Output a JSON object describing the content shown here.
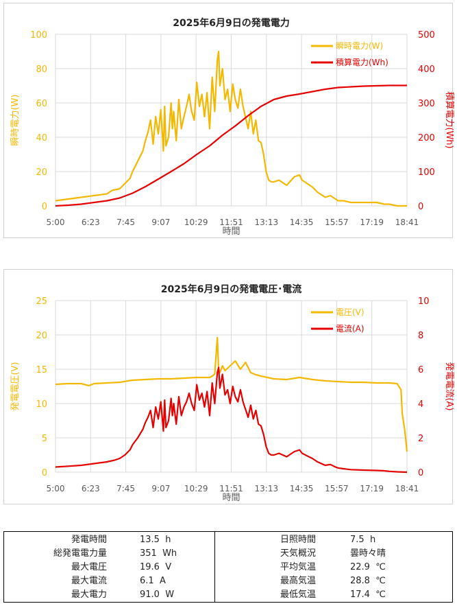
{
  "charts": [
    {
      "title": "2025年6月9日の発電電力",
      "xlabel": "時間",
      "ylabel_left": "瞬時電力(W)",
      "ylabel_right": "積算電力(Wh)",
      "xticks": [
        "5:00",
        "6:23",
        "7:45",
        "9:07",
        "10:29",
        "11:51",
        "13:13",
        "14:35",
        "15:57",
        "17:19",
        "18:41"
      ],
      "yticks_left": [
        "0",
        "20",
        "40",
        "60",
        "80",
        "100"
      ],
      "yticks_right": [
        "0",
        "100",
        "200",
        "300",
        "400",
        "500"
      ],
      "legend": [
        "瞬時電力(W)",
        "積算電力(Wh)"
      ]
    },
    {
      "title": "2025年6月9日の発電電圧･電流",
      "xlabel": "時間",
      "ylabel_left": "発電電圧(V)",
      "ylabel_right": "発電電流(A)",
      "xticks": [
        "5:00",
        "6:23",
        "7:45",
        "9:07",
        "10:29",
        "11:51",
        "13:13",
        "14:35",
        "15:57",
        "17:19",
        "18:41"
      ],
      "yticks_left": [
        "0",
        "5",
        "10",
        "15",
        "20",
        "25"
      ],
      "yticks_right": [
        "0",
        "2",
        "4",
        "6",
        "8",
        "10"
      ],
      "legend": [
        "電圧(V)",
        "電流(A)"
      ]
    }
  ],
  "chart_data": [
    {
      "type": "line",
      "title": "2025年6月9日の発電電力",
      "xlabel": "時間",
      "xlim": [
        5.0,
        18.683
      ],
      "ylim_left": [
        0,
        100
      ],
      "ylim_right": [
        0,
        500
      ],
      "grid": true,
      "legend_position": "top-right",
      "series": [
        {
          "name": "瞬時電力(W)",
          "axis": "left",
          "color": "#f5b800",
          "x": [
            5.0,
            5.5,
            6.0,
            6.5,
            7.0,
            7.2,
            7.5,
            7.7,
            7.9,
            8.0,
            8.2,
            8.4,
            8.5,
            8.6,
            8.7,
            8.8,
            8.9,
            9.0,
            9.1,
            9.2,
            9.25,
            9.3,
            9.4,
            9.5,
            9.55,
            9.6,
            9.7,
            9.8,
            9.9,
            10.0,
            10.1,
            10.2,
            10.3,
            10.4,
            10.5,
            10.6,
            10.7,
            10.8,
            10.9,
            11.0,
            11.1,
            11.2,
            11.3,
            11.35,
            11.4,
            11.5,
            11.6,
            11.7,
            11.8,
            11.9,
            12.0,
            12.1,
            12.2,
            12.3,
            12.5,
            12.6,
            12.7,
            12.8,
            12.9,
            13.0,
            13.1,
            13.2,
            13.3,
            13.4,
            13.5,
            13.7,
            14.0,
            14.3,
            14.5,
            14.6,
            14.8,
            15.0,
            15.2,
            15.5,
            15.7,
            15.9,
            16.0,
            16.2,
            16.5,
            17.0,
            17.5,
            17.8,
            18.0,
            18.3,
            18.683
          ],
          "y": [
            3,
            4,
            5,
            6,
            7,
            9,
            10,
            13,
            16,
            20,
            26,
            32,
            38,
            43,
            50,
            36,
            52,
            42,
            56,
            32,
            58,
            35,
            40,
            60,
            45,
            55,
            38,
            62,
            45,
            52,
            58,
            65,
            55,
            50,
            72,
            58,
            65,
            52,
            66,
            45,
            75,
            55,
            85,
            90,
            70,
            80,
            62,
            68,
            55,
            71,
            62,
            57,
            68,
            58,
            45,
            55,
            42,
            50,
            38,
            37,
            30,
            20,
            15,
            14,
            14,
            15,
            12,
            17,
            18,
            15,
            13,
            11,
            8,
            5,
            6,
            4,
            3,
            3,
            2,
            2,
            2,
            1,
            1,
            0,
            0
          ]
        },
        {
          "name": "積算電力(Wh)",
          "axis": "right",
          "color": "#e60000",
          "x": [
            5.0,
            5.5,
            6.0,
            6.5,
            7.0,
            7.5,
            8.0,
            8.5,
            9.0,
            9.5,
            10.0,
            10.5,
            11.0,
            11.5,
            12.0,
            12.5,
            13.0,
            13.5,
            14.0,
            14.5,
            15.0,
            15.5,
            16.0,
            16.5,
            17.0,
            17.5,
            18.0,
            18.683
          ],
          "y": [
            0,
            2,
            5,
            10,
            15,
            23,
            37,
            56,
            78,
            100,
            123,
            150,
            175,
            206,
            233,
            263,
            290,
            310,
            320,
            326,
            333,
            340,
            345,
            347,
            349,
            350,
            351,
            351
          ]
        }
      ]
    },
    {
      "type": "line",
      "title": "2025年6月9日の発電電圧･電流",
      "xlabel": "時間",
      "xlim": [
        5.0,
        18.683
      ],
      "ylim_left": [
        0,
        25
      ],
      "ylim_right": [
        0,
        10
      ],
      "grid": true,
      "legend_position": "top-right",
      "series": [
        {
          "name": "電圧(V)",
          "axis": "left",
          "color": "#f5b800",
          "x": [
            5.0,
            5.5,
            6.0,
            6.3,
            6.5,
            7.0,
            7.5,
            8.0,
            8.5,
            9.0,
            9.5,
            10.0,
            10.5,
            11.0,
            11.1,
            11.2,
            11.3,
            11.35,
            11.4,
            11.5,
            11.6,
            11.8,
            12.0,
            12.2,
            12.4,
            12.6,
            12.8,
            13.0,
            13.5,
            14.0,
            14.5,
            15.0,
            15.5,
            16.0,
            16.5,
            17.0,
            17.5,
            18.0,
            18.3,
            18.45,
            18.5,
            18.6,
            18.683
          ],
          "y": [
            12.8,
            12.9,
            12.9,
            12.6,
            12.9,
            13.0,
            13.1,
            13.4,
            13.5,
            13.6,
            13.6,
            13.7,
            13.8,
            13.8,
            14.0,
            14.3,
            19.6,
            15.0,
            14.5,
            15.5,
            14.8,
            15.5,
            16.2,
            15.0,
            16.0,
            14.5,
            14.2,
            14.0,
            13.6,
            13.5,
            13.8,
            13.5,
            13.3,
            13.2,
            13.1,
            13.1,
            13.0,
            13.0,
            12.9,
            12.0,
            8.5,
            6.0,
            3.0
          ]
        },
        {
          "name": "電流(A)",
          "axis": "right",
          "color": "#e60000",
          "x": [
            5.0,
            5.5,
            6.0,
            6.5,
            7.0,
            7.3,
            7.5,
            7.7,
            7.9,
            8.0,
            8.2,
            8.4,
            8.5,
            8.6,
            8.7,
            8.8,
            8.9,
            9.0,
            9.1,
            9.2,
            9.25,
            9.3,
            9.4,
            9.5,
            9.55,
            9.6,
            9.7,
            9.8,
            9.9,
            10.0,
            10.1,
            10.2,
            10.3,
            10.4,
            10.5,
            10.6,
            10.7,
            10.8,
            10.9,
            11.0,
            11.1,
            11.2,
            11.3,
            11.35,
            11.4,
            11.5,
            11.6,
            11.7,
            11.8,
            11.9,
            12.0,
            12.1,
            12.2,
            12.3,
            12.5,
            12.6,
            12.7,
            12.8,
            12.9,
            13.0,
            13.1,
            13.2,
            13.3,
            13.4,
            13.5,
            13.7,
            14.0,
            14.3,
            14.5,
            14.6,
            14.8,
            15.0,
            15.2,
            15.5,
            15.7,
            15.9,
            16.0,
            16.2,
            16.5,
            17.0,
            17.5,
            17.8,
            18.0,
            18.3,
            18.683
          ],
          "y": [
            0.3,
            0.35,
            0.4,
            0.5,
            0.6,
            0.7,
            0.8,
            1.0,
            1.3,
            1.6,
            2.0,
            2.5,
            2.9,
            3.2,
            3.6,
            2.6,
            3.8,
            3.1,
            4.1,
            2.4,
            4.2,
            2.6,
            3.0,
            4.3,
            3.3,
            4.0,
            2.8,
            4.4,
            3.3,
            3.8,
            4.1,
            4.6,
            4.0,
            3.6,
            5.1,
            4.2,
            4.6,
            3.8,
            4.7,
            3.3,
            5.2,
            4.0,
            5.8,
            6.1,
            4.9,
            5.7,
            4.5,
            4.8,
            4.0,
            5.0,
            4.4,
            4.1,
            4.8,
            4.1,
            3.2,
            3.9,
            3.1,
            3.6,
            2.8,
            2.7,
            2.2,
            1.5,
            1.1,
            1.0,
            1.0,
            1.1,
            0.9,
            1.2,
            1.3,
            1.1,
            0.95,
            0.8,
            0.6,
            0.4,
            0.45,
            0.3,
            0.25,
            0.2,
            0.15,
            0.12,
            0.1,
            0.08,
            0.05,
            0.02,
            0.0
          ]
        }
      ]
    }
  ],
  "stats": {
    "left": [
      {
        "label": "発電時間",
        "value": "13.5  h"
      },
      {
        "label": "総発電電力量",
        "value": "351  Wh"
      },
      {
        "label": "最大電圧",
        "value": "19.6  V"
      },
      {
        "label": "最大電流",
        "value": "6.1  A"
      },
      {
        "label": "最大電力",
        "value": "91.0  W"
      }
    ],
    "right": [
      {
        "label": "日照時間",
        "value": "7.5  h"
      },
      {
        "label": "天気概況",
        "value": "曇時々晴"
      },
      {
        "label": "平均気温",
        "value": "22.9  ℃"
      },
      {
        "label": "最高気温",
        "value": "28.8  ℃"
      },
      {
        "label": "最低気温",
        "value": "17.4  ℃"
      }
    ]
  }
}
